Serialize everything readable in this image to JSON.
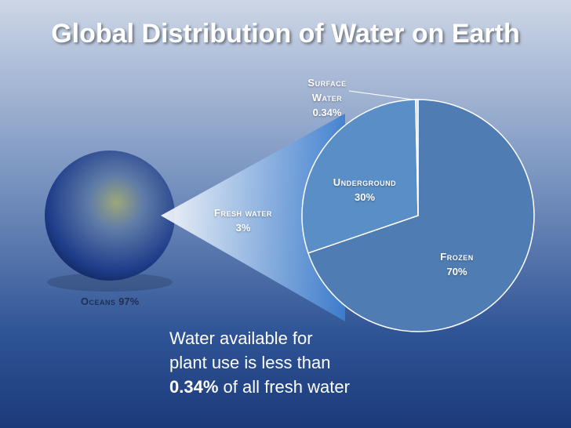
{
  "chart_data": {
    "type": "pie",
    "title": "Global Distribution of Water on Earth",
    "categories": [
      "Frozen",
      "Underground",
      "Surface Water"
    ],
    "values": [
      70,
      30,
      0.34
    ],
    "value_labels": [
      "70%",
      "30%",
      "0.34%"
    ],
    "colors": [
      "#4f7db3",
      "#5a8ec6",
      "#c9d9ec"
    ]
  },
  "oceans": {
    "label": "Oceans",
    "value": "97%"
  },
  "fresh_water": {
    "label": "Fresh water",
    "value": "3%"
  },
  "note": {
    "line1": "Water available for",
    "line2": "plant use is less than",
    "emphasis": "0.34%",
    "line3": "of all fresh water"
  }
}
